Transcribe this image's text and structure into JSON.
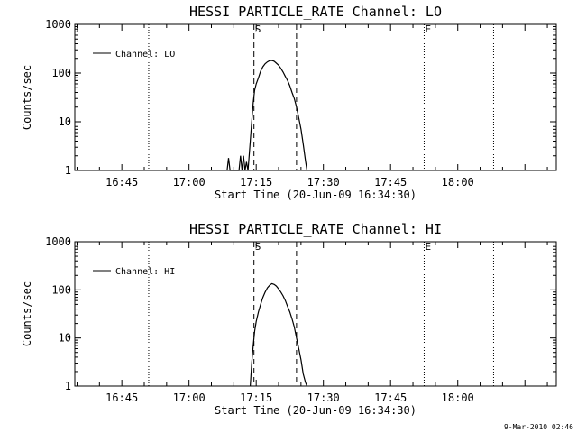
{
  "footer": "9-Mar-2010 02:46",
  "chart_data": [
    {
      "type": "line",
      "title": "HESSI PARTICLE_RATE Channel: LO",
      "xlabel": "Start Time (20-Jun-09 16:34:30)",
      "ylabel": "Counts/sec",
      "y_scale": "log",
      "xlim": [
        "16:34:30",
        "18:22:00"
      ],
      "ylim": [
        1,
        1000
      ],
      "x_ticks": [
        "16:45",
        "17:00",
        "17:15",
        "17:30",
        "17:45",
        "18:00"
      ],
      "y_ticks": [
        {
          "value": 1,
          "label": "1"
        },
        {
          "value": 10,
          "label": "10"
        },
        {
          "value": 100,
          "label": "100"
        },
        {
          "value": 1000,
          "label": "1000"
        }
      ],
      "legend": {
        "label": "Channel: LO",
        "position": "top-left"
      },
      "vlines": [
        {
          "x": "16:51:00",
          "style": "dotted",
          "label": ""
        },
        {
          "x": "17:14:30",
          "style": "dashed",
          "label": "S"
        },
        {
          "x": "17:24:00",
          "style": "dashed",
          "label": ""
        },
        {
          "x": "17:52:30",
          "style": "dotted",
          "label": "E"
        },
        {
          "x": "18:08:00",
          "style": "dotted",
          "label": ""
        }
      ],
      "series": [
        {
          "name": "Channel: LO",
          "x": [
            "17:08:30",
            "17:08:50",
            "17:09:10",
            "17:09:30",
            "17:11:10",
            "17:11:30",
            "17:11:50",
            "17:12:10",
            "17:12:30",
            "17:12:50",
            "17:13:10",
            "17:13:40",
            "17:14:00",
            "17:14:20",
            "17:14:40",
            "17:15:00",
            "17:15:30",
            "17:16:00",
            "17:16:30",
            "17:17:00",
            "17:17:30",
            "17:18:00",
            "17:18:30",
            "17:19:00",
            "17:19:30",
            "17:20:00",
            "17:20:30",
            "17:21:00",
            "17:21:30",
            "17:22:00",
            "17:22:30",
            "17:23:00",
            "17:23:30",
            "17:24:00",
            "17:24:30",
            "17:25:00",
            "17:25:30",
            "17:26:00",
            "17:26:20"
          ],
          "y": [
            1,
            1.8,
            1,
            1,
            1,
            2,
            1,
            2,
            1,
            1.5,
            1,
            4,
            10,
            25,
            45,
            60,
            80,
            110,
            135,
            155,
            170,
            180,
            182,
            175,
            160,
            145,
            125,
            105,
            85,
            70,
            55,
            40,
            30,
            20,
            12,
            7,
            3.5,
            1.6,
            1
          ]
        }
      ]
    },
    {
      "type": "line",
      "title": "HESSI PARTICLE_RATE Channel: HI",
      "xlabel": "Start Time (20-Jun-09 16:34:30)",
      "ylabel": "Counts/sec",
      "y_scale": "log",
      "xlim": [
        "16:34:30",
        "18:22:00"
      ],
      "ylim": [
        1,
        1000
      ],
      "x_ticks": [
        "16:45",
        "17:00",
        "17:15",
        "17:30",
        "17:45",
        "18:00"
      ],
      "y_ticks": [
        {
          "value": 1,
          "label": "1"
        },
        {
          "value": 10,
          "label": "10"
        },
        {
          "value": 100,
          "label": "100"
        },
        {
          "value": 1000,
          "label": "1000"
        }
      ],
      "legend": {
        "label": "Channel: HI",
        "position": "top-left"
      },
      "vlines": [
        {
          "x": "16:51:00",
          "style": "dotted",
          "label": ""
        },
        {
          "x": "17:14:30",
          "style": "dashed",
          "label": "S"
        },
        {
          "x": "17:24:00",
          "style": "dashed",
          "label": ""
        },
        {
          "x": "17:52:30",
          "style": "dotted",
          "label": "E"
        },
        {
          "x": "18:08:00",
          "style": "dotted",
          "label": ""
        }
      ],
      "series": [
        {
          "name": "Channel: HI",
          "x": [
            "17:13:40",
            "17:14:00",
            "17:14:20",
            "17:14:40",
            "17:15:00",
            "17:15:30",
            "17:16:00",
            "17:16:30",
            "17:17:00",
            "17:17:30",
            "17:18:00",
            "17:18:30",
            "17:19:00",
            "17:19:30",
            "17:20:00",
            "17:20:30",
            "17:21:00",
            "17:21:30",
            "17:22:00",
            "17:22:30",
            "17:23:00",
            "17:23:30",
            "17:24:00",
            "17:24:30",
            "17:25:00",
            "17:25:30",
            "17:26:00",
            "17:26:20"
          ],
          "y": [
            1,
            3,
            7,
            14,
            22,
            35,
            50,
            70,
            90,
            110,
            125,
            135,
            130,
            120,
            105,
            90,
            75,
            60,
            45,
            35,
            25,
            17,
            10,
            6,
            3.5,
            1.8,
            1.2,
            1
          ]
        }
      ]
    }
  ]
}
